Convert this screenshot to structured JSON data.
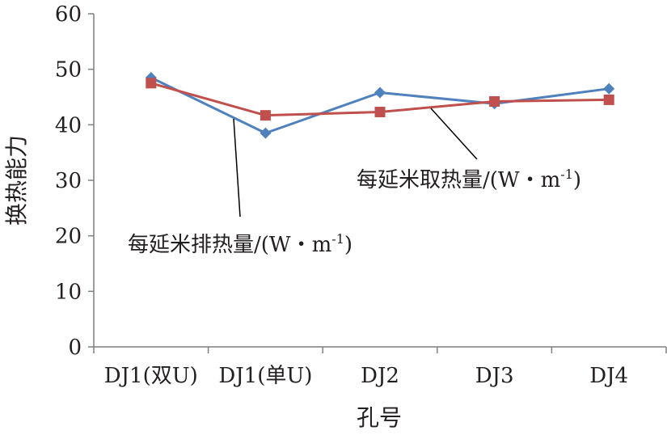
{
  "chart_data": {
    "type": "line",
    "categories": [
      "DJ1(双U)",
      "DJ1(单U)",
      "DJ2",
      "DJ3",
      "DJ4"
    ],
    "series": [
      {
        "name": "每延米取热量/(W・m-1)",
        "values": [
          48.5,
          38.5,
          45.8,
          43.8,
          46.5
        ],
        "color": "#4f81bd",
        "marker": "diamond"
      },
      {
        "name": "每延米排热量/(W・m-1)",
        "values": [
          47.5,
          41.7,
          42.3,
          44.2,
          44.5
        ],
        "color": "#c0504d",
        "marker": "square"
      }
    ],
    "y_ticks": [
      "0",
      "10",
      "20",
      "30",
      "40",
      "50",
      "60"
    ],
    "ylim": [
      0,
      60
    ],
    "xlabel": "孔号",
    "ylabel": "换热能力",
    "annotations": [
      {
        "series_index": 0,
        "text": "每延米取热量/(W・m",
        "sup": "-1",
        "close": ")"
      },
      {
        "series_index": 1,
        "text": "每延米排热量/(W・m",
        "sup": "-1",
        "close": ")"
      }
    ],
    "grid": false,
    "legend": "none (inline annotations)"
  }
}
